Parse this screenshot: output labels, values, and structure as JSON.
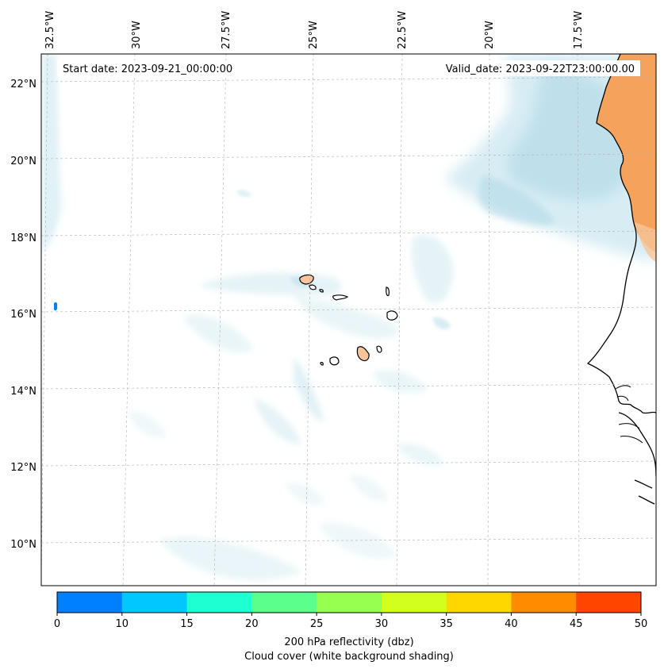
{
  "map": {
    "start_date": "Start date: 2023-09-21_00:00:00",
    "valid_date": "Valid_date: 2023-09-22T23:00:00.00",
    "lon_labels": [
      "32.5°W",
      "30°W",
      "27.5°W",
      "25°W",
      "22.5°W",
      "20°W",
      "17.5°W"
    ],
    "lat_labels": [
      "22°N",
      "20°N",
      "18°N",
      "16°N",
      "14°N",
      "12°N",
      "10°N"
    ],
    "land_color": "#f5a35c",
    "cloud_color": "#a9d6e5"
  },
  "colorbar": {
    "ticks": [
      "0",
      "10",
      "15",
      "20",
      "25",
      "30",
      "35",
      "40",
      "45",
      "50"
    ],
    "colors": [
      "#0080ff",
      "#00c8ff",
      "#1effd2",
      "#5aff8c",
      "#96ff50",
      "#d2ff1e",
      "#ffd700",
      "#ff8c00",
      "#ff4500"
    ],
    "label": "200 hPa reflectivity (dbz)",
    "sublabel": "Cloud cover (white background shading)"
  }
}
